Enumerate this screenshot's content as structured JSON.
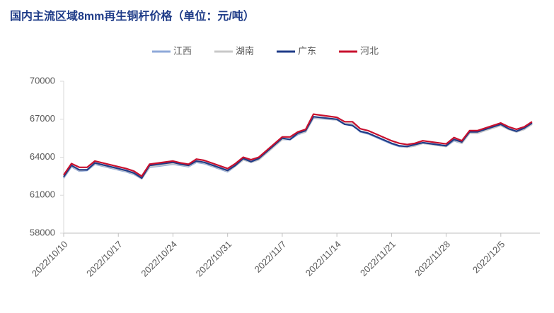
{
  "chart_data": {
    "type": "line",
    "title": "国内主流区域8mm再生铜杆价格（单位：元/吨）",
    "x": [
      "2022/10/10",
      "2022/10/11",
      "2022/10/12",
      "2022/10/13",
      "2022/10/14",
      "2022/10/17",
      "2022/10/18",
      "2022/10/19",
      "2022/10/20",
      "2022/10/21",
      "2022/10/24",
      "2022/10/25",
      "2022/10/26",
      "2022/10/27",
      "2022/10/28",
      "2022/10/31",
      "2022/11/1",
      "2022/11/2",
      "2022/11/3",
      "2022/11/4",
      "2022/11/7",
      "2022/11/8",
      "2022/11/9",
      "2022/11/10",
      "2022/11/11",
      "2022/11/14",
      "2022/11/15",
      "2022/11/16",
      "2022/11/17",
      "2022/11/18",
      "2022/11/21",
      "2022/11/22",
      "2022/11/23",
      "2022/11/24",
      "2022/11/25",
      "2022/11/28",
      "2022/11/29",
      "2022/11/30",
      "2022/12/1",
      "2022/12/2",
      "2022/12/5",
      "2022/12/6",
      "2022/12/7",
      "2022/12/8",
      "2022/12/9"
    ],
    "series": [
      {
        "name": "江西",
        "color": "#8fa9d9",
        "values": [
          62350,
          63250,
          62900,
          62950,
          63450,
          63000,
          62850,
          62650,
          62300,
          63200,
          63450,
          63350,
          63250,
          63600,
          63500,
          62850,
          63300,
          63800,
          63600,
          63800,
          65400,
          65400,
          65800,
          66000,
          67100,
          66950,
          66600,
          66600,
          66000,
          65850,
          65050,
          64850,
          64800,
          64900,
          65100,
          64850,
          65300,
          65100,
          65900,
          65900,
          66550,
          66200,
          66000,
          66200,
          66650
        ]
      },
      {
        "name": "湖南",
        "color": "#c8c8c8",
        "values": [
          62400,
          63300,
          62950,
          63000,
          63500,
          63050,
          62900,
          62700,
          62300,
          63250,
          63500,
          63400,
          63300,
          63650,
          63550,
          62900,
          63300,
          63800,
          63600,
          63800,
          65400,
          65450,
          65850,
          66000,
          67150,
          66950,
          66650,
          66650,
          66050,
          65900,
          65100,
          64900,
          64800,
          64900,
          65100,
          64850,
          65350,
          65100,
          65900,
          65900,
          66500,
          66200,
          66000,
          66200,
          66600
        ]
      },
      {
        "name": "广东",
        "color": "#1f3c88",
        "values": [
          62450,
          63350,
          63000,
          63000,
          63550,
          63100,
          62950,
          62750,
          62350,
          63350,
          63600,
          63450,
          63350,
          63700,
          63600,
          62950,
          63350,
          63900,
          63650,
          63900,
          65500,
          65400,
          65900,
          66100,
          67200,
          67000,
          66600,
          66500,
          66050,
          65900,
          65100,
          64900,
          64850,
          65000,
          65150,
          64900,
          65400,
          65200,
          66000,
          66000,
          66600,
          66250,
          66050,
          66300,
          66700
        ]
      },
      {
        "name": "河北",
        "color": "#c8102e",
        "values": [
          62600,
          63500,
          63200,
          63200,
          63700,
          63250,
          63100,
          62900,
          62500,
          63450,
          63700,
          63550,
          63450,
          63850,
          63750,
          63100,
          63500,
          64000,
          63800,
          64000,
          65600,
          65600,
          66000,
          66200,
          67400,
          67150,
          66800,
          66800,
          66250,
          66100,
          65300,
          65100,
          65000,
          65100,
          65300,
          65050,
          65550,
          65300,
          66100,
          66100,
          66700,
          66400,
          66200,
          66400,
          66800
        ]
      }
    ],
    "xlim": [
      "2022/10/10",
      "2022/12/10"
    ],
    "xticks": [
      "2022/10/10",
      "2022/10/17",
      "2022/10/24",
      "2022/10/31",
      "2022/11/7",
      "2022/11/14",
      "2022/11/21",
      "2022/11/28",
      "2022/12/5"
    ],
    "ylim": [
      58000,
      70000
    ],
    "yticks": [
      58000,
      61000,
      64000,
      67000,
      70000
    ],
    "grid": false,
    "legend": "top"
  }
}
